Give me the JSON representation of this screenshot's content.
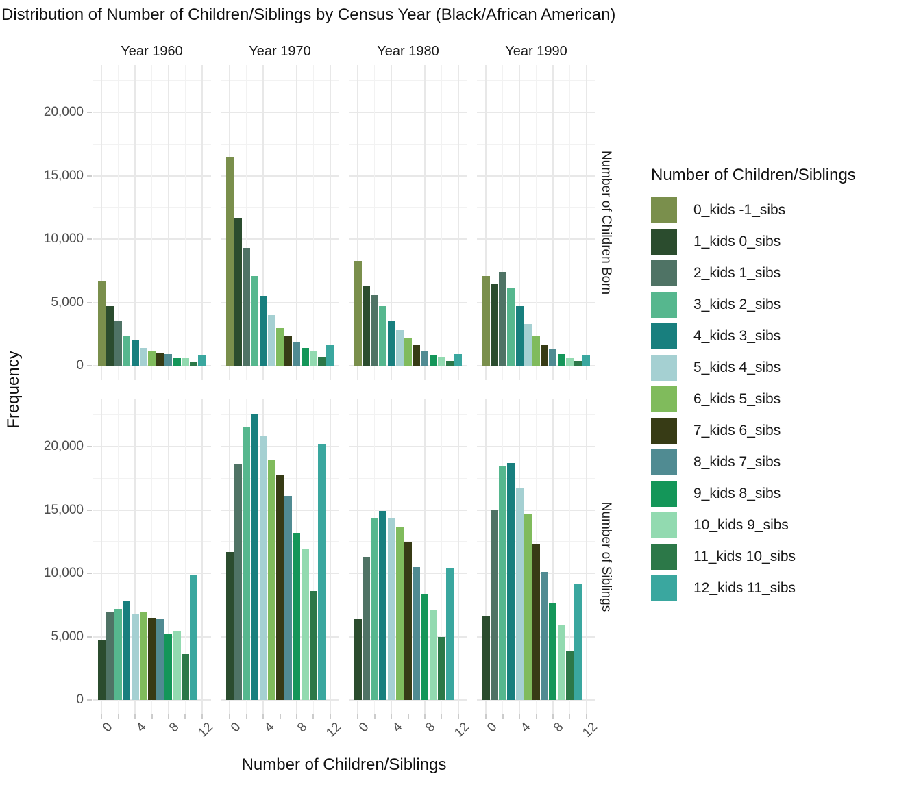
{
  "page": {
    "background": "#ffffff"
  },
  "chart_data": {
    "type": "bar",
    "title": "Distribution of Number of Children/Siblings by Census Year (Black/African American)",
    "xlabel": "Number of Children/Siblings",
    "ylabel": "Frequency",
    "facet_columns": [
      "Year 1960",
      "Year 1970",
      "Year 1980",
      "Year 1990"
    ],
    "facet_rows": [
      "Number of Children Born",
      "Number of Siblings"
    ],
    "x_ticks": {
      "values": [
        0,
        4,
        8,
        12
      ],
      "labels": [
        "0",
        "4",
        "8",
        "12"
      ],
      "minor": [
        2,
        6,
        10
      ]
    },
    "y_ticks": {
      "values": [
        0,
        5000,
        10000,
        15000,
        20000
      ],
      "labels": [
        "0",
        "5,000",
        "10,000",
        "15,000",
        "20,000"
      ],
      "minor": [
        2500,
        7500,
        12500,
        17500,
        22500
      ]
    },
    "xlim": [
      -1.095,
      13.095
    ],
    "ylim": [
      -1130,
      23730
    ],
    "grid": {
      "major_color": "#e8e8e8",
      "minor_color": "#f2f2f2",
      "tick_color": "#cccccc"
    },
    "legend": {
      "title": "Number of Children/Siblings",
      "entries": [
        {
          "label": "0_kids -1_sibs",
          "color": "#7a8f4c"
        },
        {
          "label": "1_kids 0_sibs",
          "color": "#2b4c2e"
        },
        {
          "label": "2_kids 1_sibs",
          "color": "#4f7365"
        },
        {
          "label": "3_kids 2_sibs",
          "color": "#56b78e"
        },
        {
          "label": "4_kids 3_sibs",
          "color": "#187f7e"
        },
        {
          "label": "5_kids 4_sibs",
          "color": "#a5d0d2"
        },
        {
          "label": "6_kids 5_sibs",
          "color": "#80bb5c"
        },
        {
          "label": "7_kids 6_sibs",
          "color": "#373b15"
        },
        {
          "label": "8_kids 7_sibs",
          "color": "#508b92"
        },
        {
          "label": "9_kids 8_sibs",
          "color": "#149659"
        },
        {
          "label": "10_kids 9_sibs",
          "color": "#92dab0"
        },
        {
          "label": "11_kids 10_sibs",
          "color": "#2c7848"
        },
        {
          "label": "12_kids 11_sibs",
          "color": "#3aa79f"
        }
      ]
    },
    "panels": [
      {
        "row": 0,
        "col": 0,
        "x_start": 0,
        "color_start": 0,
        "values": [
          6700,
          4700,
          3500,
          2400,
          2000,
          1400,
          1200,
          1000,
          900,
          600,
          600,
          300,
          800
        ]
      },
      {
        "row": 0,
        "col": 1,
        "x_start": 0,
        "color_start": 0,
        "values": [
          16500,
          11700,
          9300,
          7100,
          5500,
          4000,
          3000,
          2400,
          1900,
          1400,
          1200,
          700,
          1700
        ]
      },
      {
        "row": 0,
        "col": 2,
        "x_start": 0,
        "color_start": 0,
        "values": [
          8300,
          6300,
          5600,
          4700,
          3500,
          2800,
          2200,
          1700,
          1200,
          800,
          700,
          400,
          900
        ]
      },
      {
        "row": 0,
        "col": 3,
        "x_start": 0,
        "color_start": 0,
        "values": [
          7100,
          6500,
          7400,
          6100,
          4700,
          3300,
          2400,
          1700,
          1300,
          900,
          600,
          400,
          800
        ]
      },
      {
        "row": 1,
        "col": 0,
        "x_start": 0,
        "color_start": 1,
        "values": [
          4700,
          6900,
          7200,
          7800,
          6800,
          6900,
          6500,
          6400,
          5200,
          5400,
          3600,
          9900
        ]
      },
      {
        "row": 1,
        "col": 1,
        "x_start": 0,
        "color_start": 1,
        "values": [
          11700,
          18600,
          21500,
          22600,
          20800,
          19000,
          17800,
          16100,
          13200,
          11900,
          8600,
          20200
        ]
      },
      {
        "row": 1,
        "col": 2,
        "x_start": 0,
        "color_start": 1,
        "values": [
          6400,
          11300,
          14400,
          14900,
          14300,
          13600,
          12500,
          10500,
          8400,
          7100,
          5000,
          10400
        ]
      },
      {
        "row": 1,
        "col": 3,
        "x_start": 0,
        "color_start": 1,
        "values": [
          6600,
          15000,
          18500,
          18700,
          16700,
          14700,
          12300,
          10100,
          7700,
          5900,
          3900,
          9200
        ]
      }
    ]
  }
}
